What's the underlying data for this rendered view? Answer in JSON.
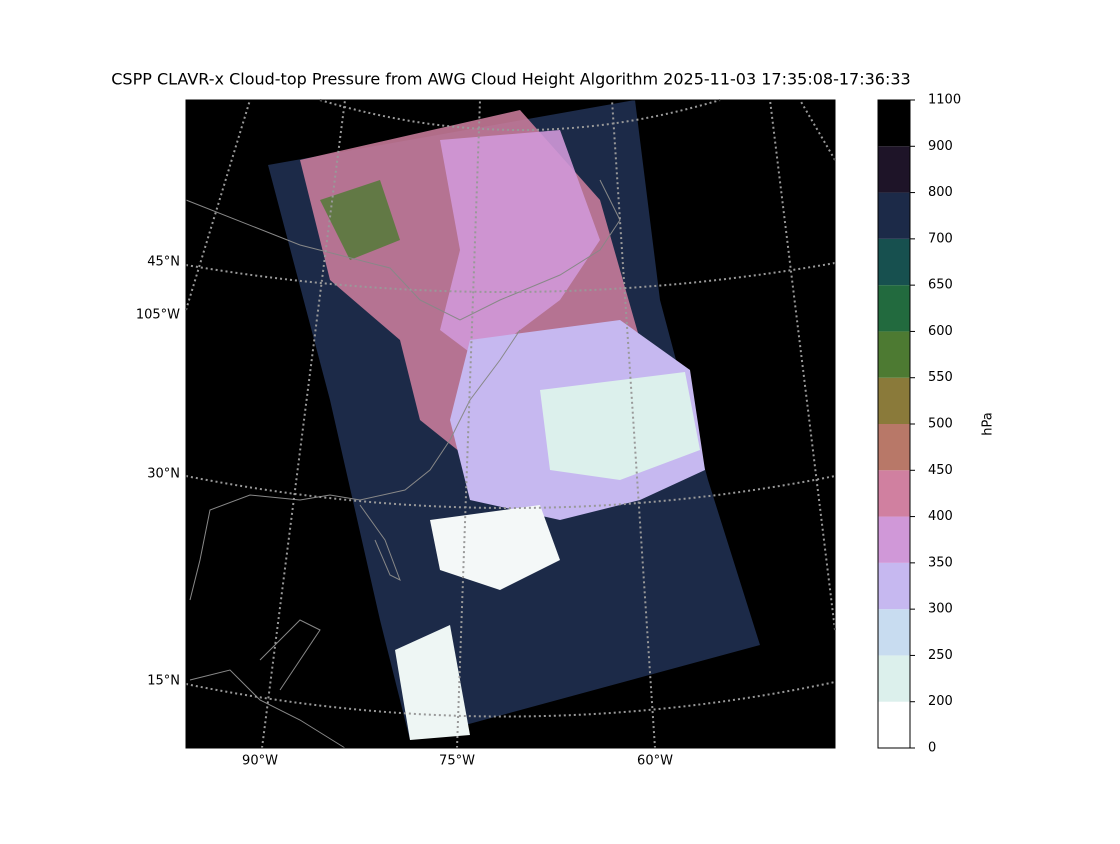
{
  "title": "CSPP CLAVR-x Cloud-top Pressure from AWG Cloud Height Algorithm 2025-11-03 17:35:08-17:36:33",
  "map": {
    "lat_labels": [
      "45°N",
      "105°W",
      "30°N",
      "15°N"
    ],
    "lon_labels": [
      "90°W",
      "75°W",
      "60°W"
    ]
  },
  "colorbar": {
    "label": "hPa",
    "ticks": [
      0,
      200,
      250,
      300,
      350,
      400,
      450,
      500,
      550,
      600,
      650,
      700,
      800,
      900,
      1100
    ],
    "colors": [
      "#ffffff",
      "#dcf0ec",
      "#c8dcf0",
      "#c6b8f0",
      "#d098d8",
      "#d080a0",
      "#b87868",
      "#8a7a3a",
      "#4d7a32",
      "#226a3e",
      "#17504f",
      "#1c2a48",
      "#1e1428",
      "#000000"
    ]
  }
}
